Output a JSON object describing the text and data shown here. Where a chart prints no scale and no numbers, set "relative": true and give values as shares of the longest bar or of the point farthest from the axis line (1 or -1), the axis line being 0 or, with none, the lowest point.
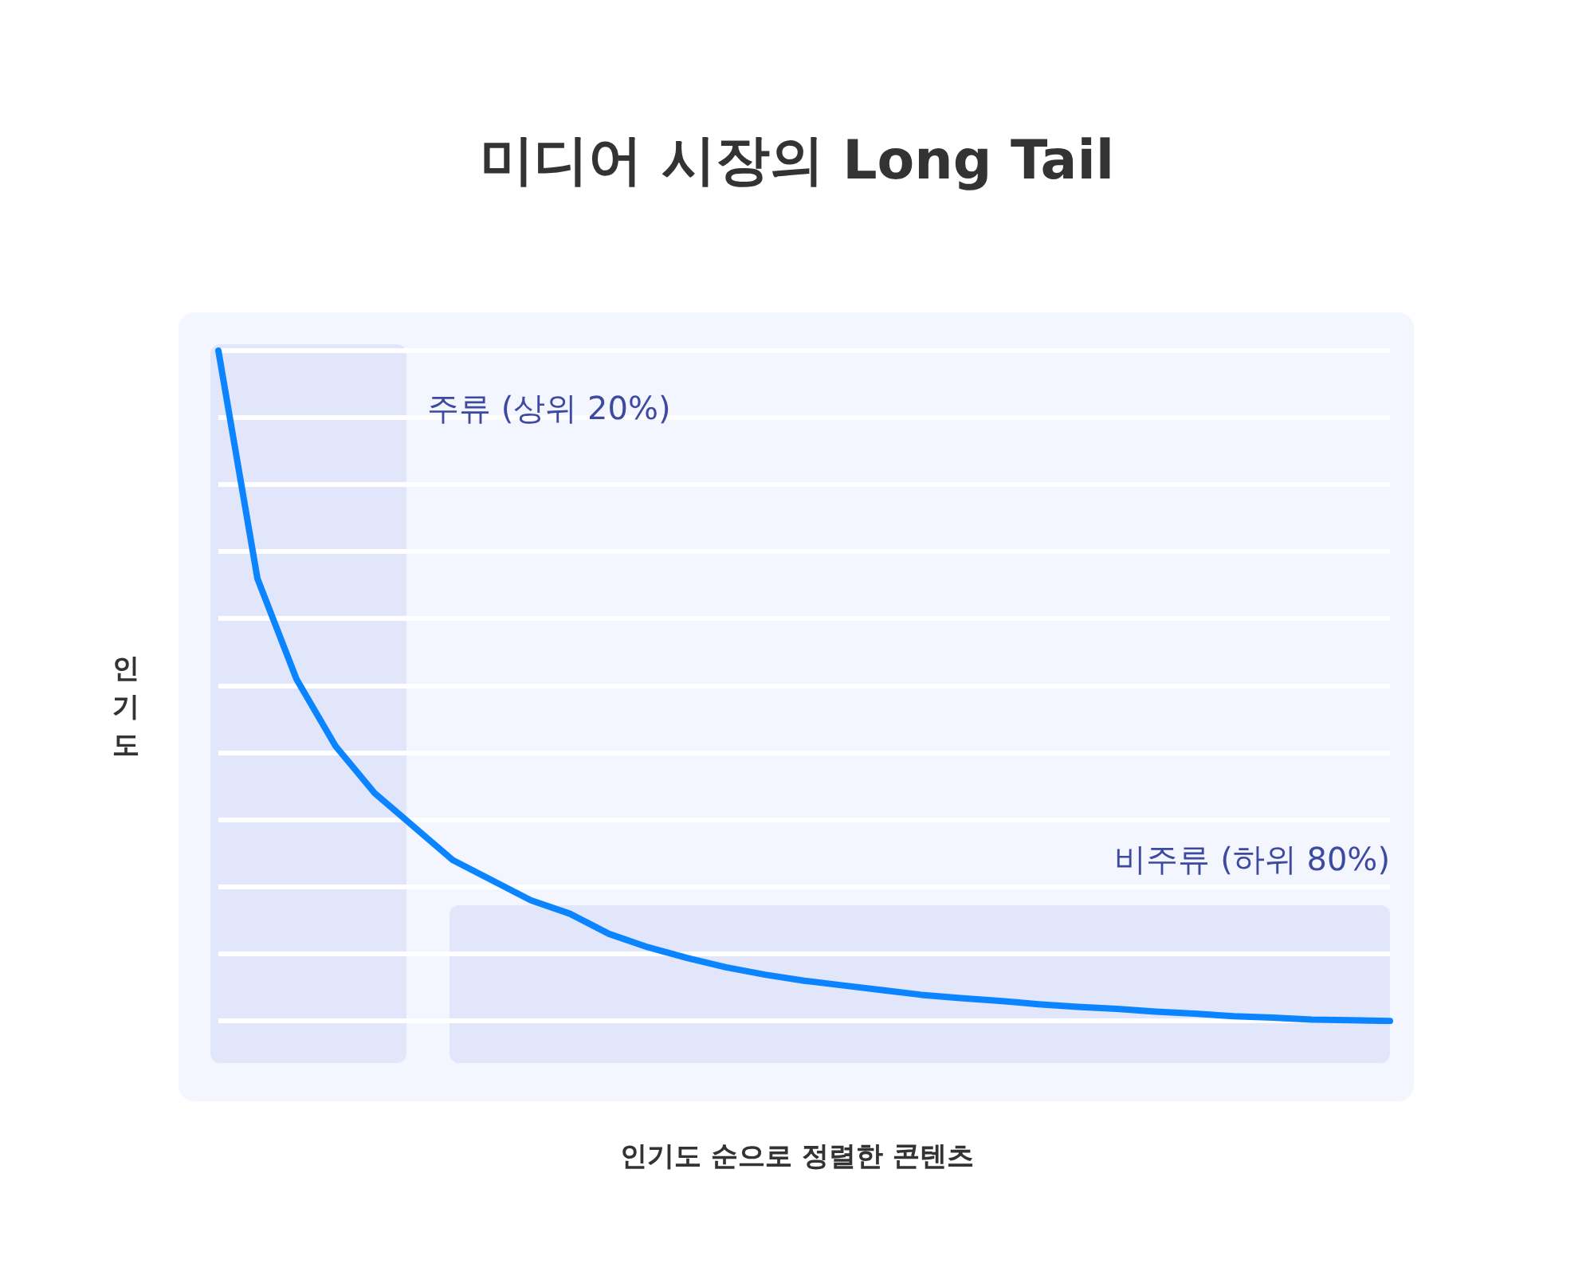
{
  "chart_data": {
    "type": "line",
    "title": "미디어 시장의 Long Tail",
    "xlabel": "인기도 순으로 정렬한 콘텐츠",
    "ylabel": "인기도",
    "relative": true,
    "grid": "y",
    "marker": "none",
    "line_style": "solid",
    "categories": [
      null,
      null,
      null,
      null,
      null,
      null,
      null,
      null,
      null,
      null,
      null,
      null,
      null,
      null,
      null,
      null,
      null,
      null,
      null,
      null,
      null,
      null,
      null,
      null,
      null,
      null,
      null,
      null,
      null,
      null,
      null
    ],
    "series": [
      {
        "color": "#0a84ff",
        "values": [
          1,
          0.66,
          0.51,
          0.41,
          0.34,
          0.29,
          0.24,
          0.21,
          0.18,
          0.16,
          0.13,
          0.11,
          0.094,
          0.08,
          0.069,
          0.06,
          0.053,
          0.046,
          0.039,
          0.034,
          0.03,
          0.025,
          0.021,
          0.018,
          0.014,
          0.011,
          0.007,
          0.005,
          0.002,
          0.001,
          0
        ]
      }
    ],
    "annotations": [
      "주류 (상위 20%)",
      "비주류 (하위 80%)"
    ]
  }
}
